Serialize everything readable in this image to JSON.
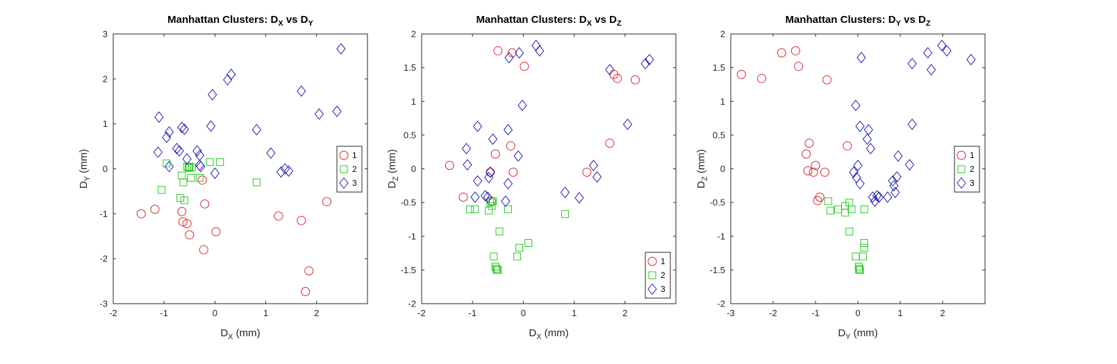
{
  "colors": {
    "series_1": "#d62728",
    "series_2": "#22cc22",
    "series_3": "#1f1fb4"
  },
  "chart_data": [
    {
      "type": "scatter",
      "title": {
        "main": "Manhattan Clusters: D",
        "sub1": "X",
        "mid": " vs D",
        "sub2": "Y"
      },
      "xlabel": {
        "base": "D",
        "sub": "X",
        "unit": " (mm)"
      },
      "ylabel": {
        "base": "D",
        "sub": "Y",
        "unit": " (mm)"
      },
      "xlim": [
        -2,
        3
      ],
      "ylim": [
        -3,
        3
      ],
      "xticks": [
        -2,
        -1,
        0,
        1,
        2
      ],
      "yticks": [
        -3,
        -2,
        -1,
        0,
        1,
        2,
        3
      ],
      "legend_position": "right-middle",
      "series": [
        {
          "name": "1",
          "marker": "circle",
          "color": "#d62728",
          "points": [
            [
              -1.45,
              -1.0
            ],
            [
              -1.18,
              -0.9
            ],
            [
              -0.65,
              -0.95
            ],
            [
              -0.63,
              -1.18
            ],
            [
              -0.55,
              -1.22
            ],
            [
              -0.5,
              -1.47
            ],
            [
              -0.25,
              -0.25
            ],
            [
              -0.2,
              -0.78
            ],
            [
              -0.22,
              -1.8
            ],
            [
              0.02,
              -1.4
            ],
            [
              1.25,
              -1.05
            ],
            [
              1.7,
              -1.15
            ],
            [
              1.85,
              -2.27
            ],
            [
              1.78,
              -2.73
            ],
            [
              2.2,
              -0.73
            ]
          ]
        },
        {
          "name": "2",
          "marker": "square",
          "color": "#22cc22",
          "points": [
            [
              -1.05,
              -0.47
            ],
            [
              -0.95,
              0.12
            ],
            [
              -0.68,
              -0.65
            ],
            [
              -0.65,
              -0.15
            ],
            [
              -0.62,
              -0.3
            ],
            [
              -0.6,
              -0.7
            ],
            [
              -0.55,
              0.05
            ],
            [
              -0.52,
              0.03
            ],
            [
              -0.5,
              0.02
            ],
            [
              -0.5,
              0.05
            ],
            [
              -0.47,
              -0.2
            ],
            [
              -0.45,
              0.03
            ],
            [
              -0.3,
              -0.2
            ],
            [
              -0.1,
              0.15
            ],
            [
              0.1,
              0.15
            ],
            [
              0.82,
              -0.3
            ]
          ]
        },
        {
          "name": "3",
          "marker": "diamond",
          "color": "#1f1fb4",
          "points": [
            [
              -1.1,
              1.15
            ],
            [
              -1.12,
              0.37
            ],
            [
              -0.95,
              0.7
            ],
            [
              -0.9,
              0.82
            ],
            [
              -0.9,
              0.05
            ],
            [
              -0.75,
              0.45
            ],
            [
              -0.7,
              0.4
            ],
            [
              -0.65,
              0.92
            ],
            [
              -0.6,
              0.88
            ],
            [
              -0.55,
              0.22
            ],
            [
              -0.35,
              0.4
            ],
            [
              -0.3,
              0.3
            ],
            [
              -0.3,
              0.08
            ],
            [
              -0.28,
              0.05
            ],
            [
              -0.08,
              0.95
            ],
            [
              -0.05,
              1.65
            ],
            [
              0.0,
              -0.1
            ],
            [
              0.25,
              1.98
            ],
            [
              0.32,
              2.1
            ],
            [
              0.82,
              0.87
            ],
            [
              1.1,
              0.35
            ],
            [
              1.3,
              -0.07
            ],
            [
              1.38,
              0.0
            ],
            [
              1.45,
              -0.05
            ],
            [
              1.7,
              1.73
            ],
            [
              2.05,
              1.22
            ],
            [
              2.4,
              1.28
            ],
            [
              2.48,
              2.67
            ]
          ]
        }
      ]
    },
    {
      "type": "scatter",
      "title": {
        "main": "Manhattan Clusters: D",
        "sub1": "X",
        "mid": " vs D",
        "sub2": "Z"
      },
      "xlabel": {
        "base": "D",
        "sub": "X",
        "unit": " (mm)"
      },
      "ylabel": {
        "base": "D",
        "sub": "Z",
        "unit": " (mm)"
      },
      "xlim": [
        -2,
        3
      ],
      "ylim": [
        -2,
        2
      ],
      "xticks": [
        -2,
        -1,
        0,
        1,
        2
      ],
      "yticks": [
        -2,
        -1.5,
        -1,
        -0.5,
        0,
        0.5,
        1,
        1.5,
        2
      ],
      "legend_position": "bottom-right",
      "series": [
        {
          "name": "1",
          "marker": "circle",
          "color": "#d62728",
          "points": [
            [
              -1.45,
              0.05
            ],
            [
              -1.18,
              -0.42
            ],
            [
              -0.65,
              -0.05
            ],
            [
              -0.63,
              -0.48
            ],
            [
              -0.55,
              0.22
            ],
            [
              -0.5,
              1.75
            ],
            [
              -0.25,
              0.34
            ],
            [
              -0.22,
              1.72
            ],
            [
              -0.2,
              -0.05
            ],
            [
              0.02,
              1.52
            ],
            [
              1.25,
              -0.05
            ],
            [
              1.7,
              0.38
            ],
            [
              1.78,
              1.4
            ],
            [
              1.85,
              1.34
            ],
            [
              2.2,
              1.32
            ]
          ]
        },
        {
          "name": "2",
          "marker": "square",
          "color": "#22cc22",
          "points": [
            [
              -1.05,
              -0.6
            ],
            [
              -0.95,
              -0.6
            ],
            [
              -0.68,
              -0.62
            ],
            [
              -0.65,
              -0.5
            ],
            [
              -0.62,
              -0.55
            ],
            [
              -0.6,
              -0.48
            ],
            [
              -0.58,
              -1.3
            ],
            [
              -0.55,
              -1.45
            ],
            [
              -0.53,
              -1.48
            ],
            [
              -0.52,
              -1.5
            ],
            [
              -0.5,
              -1.5
            ],
            [
              -0.47,
              -0.93
            ],
            [
              -0.3,
              -0.6
            ],
            [
              -0.12,
              -1.3
            ],
            [
              -0.08,
              -1.17
            ],
            [
              0.1,
              -1.1
            ],
            [
              0.82,
              -0.67
            ]
          ]
        },
        {
          "name": "3",
          "marker": "diamond",
          "color": "#1f1fb4",
          "points": [
            [
              -1.12,
              0.3
            ],
            [
              -1.1,
              0.06
            ],
            [
              -0.95,
              -0.42
            ],
            [
              -0.9,
              0.63
            ],
            [
              -0.9,
              -0.18
            ],
            [
              -0.75,
              -0.4
            ],
            [
              -0.7,
              -0.42
            ],
            [
              -0.68,
              -0.13
            ],
            [
              -0.65,
              -0.05
            ],
            [
              -0.6,
              0.44
            ],
            [
              -0.35,
              -0.48
            ],
            [
              -0.3,
              0.58
            ],
            [
              -0.3,
              -0.22
            ],
            [
              -0.28,
              1.65
            ],
            [
              -0.1,
              0.19
            ],
            [
              -0.08,
              1.72
            ],
            [
              -0.02,
              0.94
            ],
            [
              0.25,
              1.83
            ],
            [
              0.32,
              1.75
            ],
            [
              0.82,
              -0.35
            ],
            [
              1.1,
              -0.43
            ],
            [
              1.38,
              0.05
            ],
            [
              1.45,
              -0.12
            ],
            [
              1.7,
              1.47
            ],
            [
              2.05,
              0.66
            ],
            [
              2.4,
              1.56
            ],
            [
              2.48,
              1.62
            ]
          ]
        }
      ]
    },
    {
      "type": "scatter",
      "title": {
        "main": "Manhattan Clusters: D",
        "sub1": "Y",
        "mid": " vs D",
        "sub2": "Z"
      },
      "xlabel": {
        "base": "D",
        "sub": "Y",
        "unit": " (mm)"
      },
      "ylabel": {
        "base": "D",
        "sub": "Z",
        "unit": " (mm)"
      },
      "xlim": [
        -3,
        3
      ],
      "ylim": [
        -2,
        2
      ],
      "xticks": [
        -3,
        -2,
        -1,
        0,
        1,
        2
      ],
      "yticks": [
        -2,
        -1.5,
        -1,
        -0.5,
        0,
        0.5,
        1,
        1.5,
        2
      ],
      "legend_position": "right-middle",
      "series": [
        {
          "name": "1",
          "marker": "circle",
          "color": "#d62728",
          "points": [
            [
              -2.75,
              1.4
            ],
            [
              -2.27,
              1.34
            ],
            [
              -1.8,
              1.72
            ],
            [
              -1.47,
              1.75
            ],
            [
              -1.4,
              1.52
            ],
            [
              -1.22,
              0.22
            ],
            [
              -1.18,
              -0.03
            ],
            [
              -1.15,
              0.38
            ],
            [
              -1.05,
              -0.05
            ],
            [
              -1.0,
              0.05
            ],
            [
              -0.95,
              -0.47
            ],
            [
              -0.9,
              -0.42
            ],
            [
              -0.78,
              -0.05
            ],
            [
              -0.73,
              1.32
            ],
            [
              -0.25,
              0.34
            ]
          ]
        },
        {
          "name": "2",
          "marker": "square",
          "color": "#22cc22",
          "points": [
            [
              -0.7,
              -0.48
            ],
            [
              -0.65,
              -0.62
            ],
            [
              -0.47,
              -0.6
            ],
            [
              -0.3,
              -0.55
            ],
            [
              -0.3,
              -0.65
            ],
            [
              -0.2,
              -0.5
            ],
            [
              -0.2,
              -0.93
            ],
            [
              -0.15,
              -0.6
            ],
            [
              -0.05,
              -1.3
            ],
            [
              0.02,
              -1.45
            ],
            [
              0.03,
              -1.48
            ],
            [
              0.03,
              -1.5
            ],
            [
              0.05,
              -1.5
            ],
            [
              0.12,
              -1.3
            ],
            [
              0.15,
              -0.6
            ],
            [
              0.15,
              -1.1
            ],
            [
              0.15,
              -1.17
            ]
          ]
        },
        {
          "name": "3",
          "marker": "diamond",
          "color": "#1f1fb4",
          "points": [
            [
              -0.1,
              -0.05
            ],
            [
              -0.05,
              0.94
            ],
            [
              -0.03,
              -0.13
            ],
            [
              0.0,
              0.05
            ],
            [
              0.05,
              0.63
            ],
            [
              0.05,
              -0.22
            ],
            [
              0.08,
              1.65
            ],
            [
              0.22,
              0.44
            ],
            [
              0.25,
              0.58
            ],
            [
              0.3,
              0.3
            ],
            [
              0.35,
              -0.42
            ],
            [
              0.4,
              -0.48
            ],
            [
              0.45,
              -0.4
            ],
            [
              0.5,
              -0.42
            ],
            [
              0.7,
              -0.42
            ],
            [
              0.82,
              -0.18
            ],
            [
              0.85,
              -0.25
            ],
            [
              0.88,
              -0.35
            ],
            [
              0.92,
              -0.12
            ],
            [
              0.95,
              0.19
            ],
            [
              1.22,
              0.06
            ],
            [
              1.28,
              0.66
            ],
            [
              1.28,
              1.56
            ],
            [
              1.65,
              1.72
            ],
            [
              1.73,
              1.47
            ],
            [
              1.98,
              1.83
            ],
            [
              2.1,
              1.75
            ],
            [
              2.67,
              1.62
            ]
          ]
        }
      ]
    }
  ]
}
